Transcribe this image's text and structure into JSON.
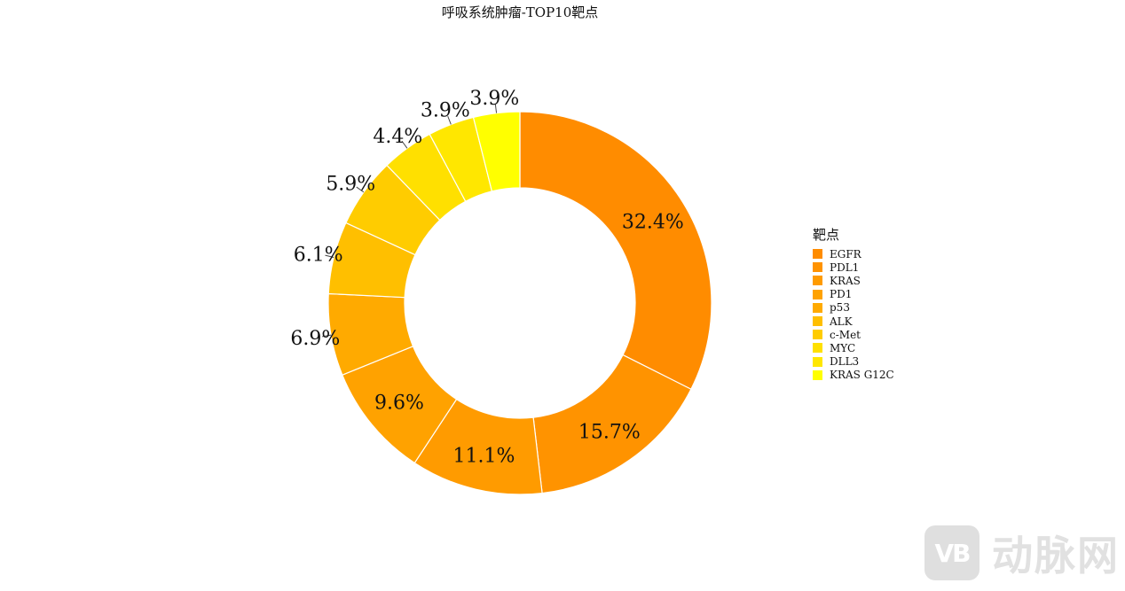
{
  "chart_data": {
    "type": "pie",
    "title": "呼吸系统肿瘤-TOP10靶点",
    "legend": {
      "title": "靶点",
      "position": "right"
    },
    "categories": [
      "EGFR",
      "PDL1",
      "KRAS",
      "PD1",
      "p53",
      "ALK",
      "c-Met",
      "MYC",
      "DLL3",
      "KRAS G12C"
    ],
    "values": [
      32.4,
      15.7,
      11.1,
      9.6,
      6.9,
      6.1,
      5.9,
      4.4,
      3.9,
      3.9
    ],
    "labels": [
      "32.4%",
      "15.7%",
      "11.1%",
      "9.6%",
      "6.9%",
      "6.1%",
      "5.9%",
      "4.4%",
      "3.9%",
      "3.9%"
    ],
    "colors": [
      "#FF8C00",
      "#FF9300",
      "#FF9B00",
      "#FFA200",
      "#FFAA00",
      "#FFBF00",
      "#FFCC00",
      "#FFE000",
      "#FFE700",
      "#FFFF00"
    ],
    "donut": true
  },
  "watermark": {
    "logo": "VB",
    "text": "动脉网"
  }
}
